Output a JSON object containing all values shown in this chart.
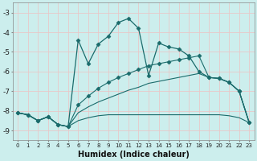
{
  "xlabel": "Humidex (Indice chaleur)",
  "bg_color": "#cceeed",
  "grid_color": "#b0d8d8",
  "line_color": "#1a6b6b",
  "xlim": [
    -0.5,
    23.5
  ],
  "ylim": [
    -9.5,
    -2.5
  ],
  "yticks": [
    -9,
    -8,
    -7,
    -6,
    -5,
    -4,
    -3
  ],
  "xticks": [
    0,
    1,
    2,
    3,
    4,
    5,
    6,
    7,
    8,
    9,
    10,
    11,
    12,
    13,
    14,
    15,
    16,
    17,
    18,
    19,
    20,
    21,
    22,
    23
  ],
  "line1_x": [
    0,
    1,
    2,
    3,
    4,
    5,
    6,
    7,
    8,
    9,
    10,
    11,
    12,
    13,
    14,
    15,
    16,
    17,
    18,
    19,
    20,
    21,
    22,
    23
  ],
  "line1_y": [
    -8.1,
    -8.2,
    -8.5,
    -8.3,
    -8.7,
    -8.8,
    -4.4,
    -5.6,
    -4.6,
    -4.2,
    -3.5,
    -3.3,
    -3.8,
    -6.2,
    -4.55,
    -4.75,
    -4.85,
    -5.2,
    -6.0,
    -6.3,
    -6.35,
    -6.55,
    -7.0,
    -8.6
  ],
  "line2_x": [
    0,
    1,
    2,
    3,
    4,
    5,
    6,
    7,
    8,
    9,
    10,
    11,
    12,
    13,
    14,
    15,
    16,
    17,
    18,
    19,
    20,
    21,
    22,
    23
  ],
  "line2_y": [
    -8.1,
    -8.2,
    -8.5,
    -8.3,
    -8.7,
    -8.8,
    -7.7,
    -7.25,
    -6.85,
    -6.55,
    -6.3,
    -6.1,
    -5.9,
    -5.7,
    -5.6,
    -5.5,
    -5.4,
    -5.3,
    -5.2,
    -6.3,
    -6.35,
    -6.55,
    -7.0,
    -8.6
  ],
  "line3_x": [
    0,
    1,
    2,
    3,
    4,
    5,
    6,
    7,
    8,
    9,
    10,
    11,
    12,
    13,
    14,
    15,
    16,
    17,
    18,
    19,
    20,
    21,
    22,
    23
  ],
  "line3_y": [
    -8.1,
    -8.2,
    -8.5,
    -8.3,
    -8.7,
    -8.8,
    -8.5,
    -8.35,
    -8.25,
    -8.2,
    -8.2,
    -8.2,
    -8.2,
    -8.2,
    -8.2,
    -8.2,
    -8.2,
    -8.2,
    -8.2,
    -8.2,
    -8.2,
    -8.25,
    -8.35,
    -8.6
  ],
  "line4_x": [
    0,
    1,
    2,
    3,
    4,
    5,
    6,
    7,
    8,
    9,
    10,
    11,
    12,
    13,
    14,
    15,
    16,
    17,
    18,
    19,
    20,
    21,
    22,
    23
  ],
  "line4_y": [
    -8.1,
    -8.2,
    -8.5,
    -8.3,
    -8.7,
    -8.8,
    -8.1,
    -7.8,
    -7.55,
    -7.35,
    -7.15,
    -6.95,
    -6.8,
    -6.6,
    -6.5,
    -6.4,
    -6.3,
    -6.2,
    -6.1,
    -6.3,
    -6.35,
    -6.55,
    -7.0,
    -8.6
  ]
}
